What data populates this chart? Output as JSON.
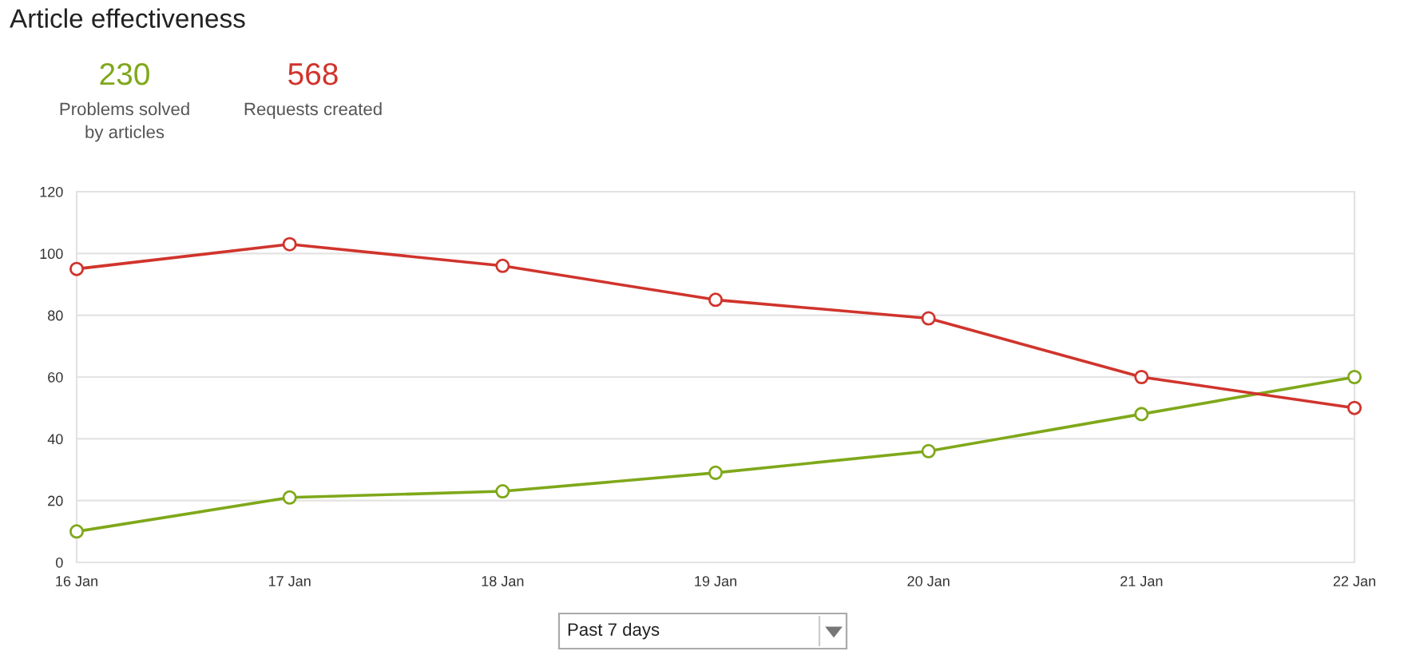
{
  "chart_data": {
    "type": "line",
    "title": "Article effectiveness",
    "categories": [
      "16 Jan",
      "17 Jan",
      "18 Jan",
      "19 Jan",
      "20 Jan",
      "21 Jan",
      "22 Jan"
    ],
    "series": [
      {
        "color": "#7fa81a",
        "values": [
          10,
          21,
          23,
          29,
          36,
          48,
          60
        ]
      },
      {
        "color": "#d0342c",
        "values": [
          95,
          103,
          96,
          85,
          79,
          60,
          50
        ]
      }
    ],
    "annotations": [
      "230",
      "Problems solved\nby articles",
      "568",
      "Requests created",
      "Past 7 days"
    ],
    "ylim": [
      0,
      120
    ],
    "yticks": [
      0,
      20,
      40,
      60,
      80,
      100,
      120
    ],
    "grid": "y",
    "marker": "circle",
    "line_style": "solid"
  }
}
